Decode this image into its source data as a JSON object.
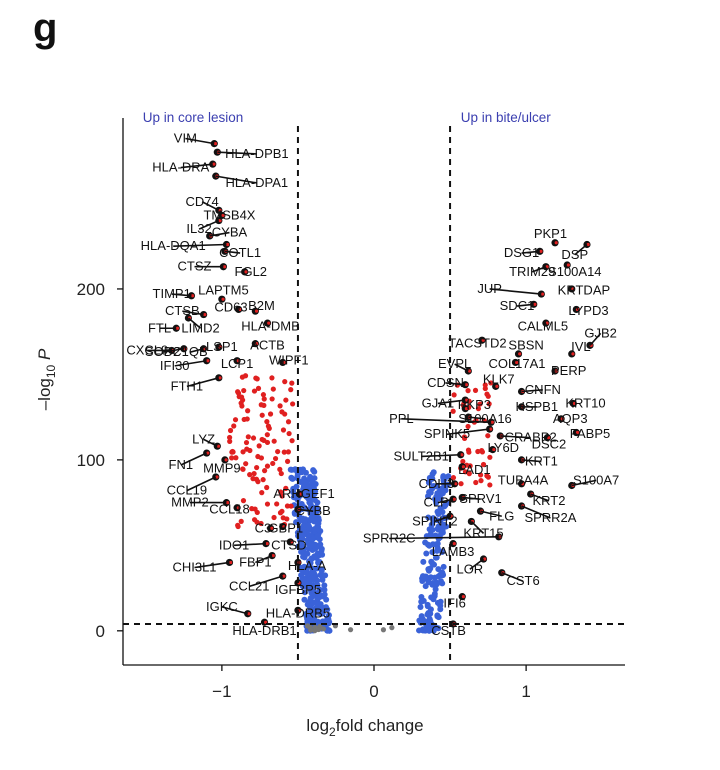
{
  "panel_label": "g",
  "chart_data": {
    "type": "scatter",
    "title": "",
    "xlabel_main": "log",
    "xlabel_sub": "2",
    "xlabel_rest": "fold change",
    "ylabel_pre": "–log",
    "ylabel_sub": "10",
    "ylabel_post": " P",
    "xlim": [
      -1.65,
      1.65
    ],
    "ylim": [
      -20,
      300
    ],
    "x_ticks": [
      -1,
      0,
      1
    ],
    "x_tick_labels": [
      "−1",
      "0",
      "1"
    ],
    "y_ticks": [
      0,
      100,
      200
    ],
    "y_tick_labels": [
      "0",
      "100",
      "200"
    ],
    "fc_threshold": 0.5,
    "p_threshold": 4,
    "region_labels": {
      "left": "Up in core lesion",
      "right": "Up in bite/ulcer"
    },
    "colors": {
      "significant": "#e02020",
      "fc_only": "#3a62d8",
      "ns": "#777777",
      "label_point": "#111111"
    },
    "labeled_genes": [
      {
        "gene": "VIM",
        "x": -1.05,
        "y": 285,
        "lx": -1.24,
        "ly": 288
      },
      {
        "gene": "HLA-DPB1",
        "x": -1.03,
        "y": 280,
        "lx": -0.77,
        "ly": 279
      },
      {
        "gene": "HLA-DRA",
        "x": -1.06,
        "y": 273,
        "lx": -1.27,
        "ly": 271
      },
      {
        "gene": "HLA-DPA1",
        "x": -1.04,
        "y": 266,
        "lx": -0.77,
        "ly": 262
      },
      {
        "gene": "CD74",
        "x": -1.02,
        "y": 246,
        "lx": -1.13,
        "ly": 251
      },
      {
        "gene": "TMSB4X",
        "x": -1.0,
        "y": 243,
        "lx": -0.95,
        "ly": 243
      },
      {
        "gene": "IL32",
        "x": -1.02,
        "y": 240,
        "lx": -1.15,
        "ly": 235
      },
      {
        "gene": "CYBA",
        "x": -1.08,
        "y": 231,
        "lx": -0.95,
        "ly": 233
      },
      {
        "gene": "HLA-DQA1",
        "x": -0.97,
        "y": 226,
        "lx": -1.32,
        "ly": 225
      },
      {
        "gene": "COTL1",
        "x": -0.98,
        "y": 222,
        "lx": -0.88,
        "ly": 221
      },
      {
        "gene": "CTSZ",
        "x": -0.99,
        "y": 213,
        "lx": -1.18,
        "ly": 213
      },
      {
        "gene": "FGL2",
        "x": -0.85,
        "y": 210,
        "lx": -0.81,
        "ly": 210
      },
      {
        "gene": "TIMP1",
        "x": -1.2,
        "y": 196,
        "lx": -1.33,
        "ly": 197
      },
      {
        "gene": "LAPTM5",
        "x": -1.0,
        "y": 194,
        "lx": -0.99,
        "ly": 199
      },
      {
        "gene": "CTSB",
        "x": -1.12,
        "y": 185,
        "lx": -1.26,
        "ly": 187
      },
      {
        "gene": "CD63",
        "x": -0.89,
        "y": 188,
        "lx": -0.94,
        "ly": 189
      },
      {
        "gene": "B2M",
        "x": -0.78,
        "y": 187,
        "lx": -0.74,
        "ly": 190
      },
      {
        "gene": "FTL",
        "x": -1.3,
        "y": 177,
        "lx": -1.41,
        "ly": 177
      },
      {
        "gene": "LIMD2",
        "x": -1.22,
        "y": 183,
        "lx": -1.14,
        "ly": 177
      },
      {
        "gene": "HLA-DMB",
        "x": -0.7,
        "y": 180,
        "lx": -0.68,
        "ly": 178
      },
      {
        "gene": "CXCL9",
        "x": -1.33,
        "y": 164,
        "lx": -1.49,
        "ly": 164
      },
      {
        "gene": "SOD2",
        "x": -1.25,
        "y": 165,
        "lx": -1.39,
        "ly": 163
      },
      {
        "gene": "C1QB",
        "x": -1.12,
        "y": 165,
        "lx": -1.21,
        "ly": 163
      },
      {
        "gene": "LSP1",
        "x": -1.02,
        "y": 166,
        "lx": -1.0,
        "ly": 166
      },
      {
        "gene": "ACTB",
        "x": -0.78,
        "y": 168,
        "lx": -0.7,
        "ly": 167
      },
      {
        "gene": "IFI30",
        "x": -1.1,
        "y": 158,
        "lx": -1.31,
        "ly": 155
      },
      {
        "gene": "LCP1",
        "x": -0.9,
        "y": 158,
        "lx": -0.9,
        "ly": 156
      },
      {
        "gene": "WIPF1",
        "x": -0.6,
        "y": 157,
        "lx": -0.56,
        "ly": 158
      },
      {
        "gene": "FTH1",
        "x": -1.02,
        "y": 148,
        "lx": -1.23,
        "ly": 143
      },
      {
        "gene": "LYZ",
        "x": -1.03,
        "y": 108,
        "lx": -1.12,
        "ly": 112
      },
      {
        "gene": "FN1",
        "x": -1.1,
        "y": 104,
        "lx": -1.27,
        "ly": 97
      },
      {
        "gene": "MMP9",
        "x": -0.98,
        "y": 100,
        "lx": -1.0,
        "ly": 95
      },
      {
        "gene": "CCL19",
        "x": -1.04,
        "y": 90,
        "lx": -1.23,
        "ly": 82
      },
      {
        "gene": "ARHGEF1",
        "x": -0.49,
        "y": 80,
        "lx": -0.46,
        "ly": 80
      },
      {
        "gene": "MMP2",
        "x": -0.97,
        "y": 75,
        "lx": -1.21,
        "ly": 75
      },
      {
        "gene": "CCL18",
        "x": -0.9,
        "y": 72,
        "lx": -0.95,
        "ly": 71
      },
      {
        "gene": "CYBB",
        "x": -0.5,
        "y": 71,
        "lx": -0.4,
        "ly": 70
      },
      {
        "gene": "C3",
        "x": -0.68,
        "y": 60,
        "lx": -0.73,
        "ly": 60
      },
      {
        "gene": "GBP1",
        "x": -0.6,
        "y": 61,
        "lx": -0.58,
        "ly": 60
      },
      {
        "gene": "IDO1",
        "x": -0.71,
        "y": 51,
        "lx": -0.92,
        "ly": 50
      },
      {
        "gene": "CTSD",
        "x": -0.55,
        "y": 52,
        "lx": -0.56,
        "ly": 50
      },
      {
        "gene": "FBP1",
        "x": -0.67,
        "y": 44,
        "lx": -0.78,
        "ly": 40
      },
      {
        "gene": "CHI3L1",
        "x": -0.95,
        "y": 40,
        "lx": -1.18,
        "ly": 37
      },
      {
        "gene": "HLA-A",
        "x": -0.5,
        "y": 40,
        "lx": -0.44,
        "ly": 38
      },
      {
        "gene": "CCL21",
        "x": -0.6,
        "y": 32,
        "lx": -0.82,
        "ly": 26
      },
      {
        "gene": "IGFBP5",
        "x": -0.5,
        "y": 28,
        "lx": -0.5,
        "ly": 24
      },
      {
        "gene": "IGKC",
        "x": -0.83,
        "y": 10,
        "lx": -1.0,
        "ly": 14
      },
      {
        "gene": "HLA-DRB5",
        "x": -0.5,
        "y": 12,
        "lx": -0.5,
        "ly": 10
      },
      {
        "gene": "HLA-DRB1",
        "x": -0.72,
        "y": 5,
        "lx": -0.72,
        "ly": 0
      },
      {
        "gene": "PKP1",
        "x": 1.19,
        "y": 227,
        "lx": 1.16,
        "ly": 232
      },
      {
        "gene": "DSG1",
        "x": 1.09,
        "y": 222,
        "lx": 0.97,
        "ly": 221
      },
      {
        "gene": "DSP",
        "x": 1.4,
        "y": 226,
        "lx": 1.32,
        "ly": 220
      },
      {
        "gene": "TRIM29",
        "x": 1.13,
        "y": 213,
        "lx": 1.04,
        "ly": 210
      },
      {
        "gene": "S100A14",
        "x": 1.27,
        "y": 214,
        "lx": 1.32,
        "ly": 210
      },
      {
        "gene": "JUP",
        "x": 1.1,
        "y": 197,
        "lx": 0.76,
        "ly": 200
      },
      {
        "gene": "KRTDAP",
        "x": 1.3,
        "y": 200,
        "lx": 1.38,
        "ly": 199
      },
      {
        "gene": "SDC1",
        "x": 1.05,
        "y": 191,
        "lx": 0.94,
        "ly": 190
      },
      {
        "gene": "LYPD3",
        "x": 1.33,
        "y": 188,
        "lx": 1.41,
        "ly": 187
      },
      {
        "gene": "CALML5",
        "x": 1.13,
        "y": 180,
        "lx": 1.11,
        "ly": 178
      },
      {
        "gene": "GJB2",
        "x": 1.42,
        "y": 167,
        "lx": 1.49,
        "ly": 174
      },
      {
        "gene": "TACSTD2",
        "x": 0.71,
        "y": 170,
        "lx": 0.68,
        "ly": 168
      },
      {
        "gene": "SBSN",
        "x": 0.95,
        "y": 162,
        "lx": 1.0,
        "ly": 167
      },
      {
        "gene": "IVL",
        "x": 1.3,
        "y": 162,
        "lx": 1.36,
        "ly": 166
      },
      {
        "gene": "EVPL",
        "x": 0.62,
        "y": 152,
        "lx": 0.53,
        "ly": 156
      },
      {
        "gene": "COL17A1",
        "x": 0.93,
        "y": 157,
        "lx": 0.94,
        "ly": 156
      },
      {
        "gene": "PERP",
        "x": 1.19,
        "y": 152,
        "lx": 1.28,
        "ly": 152
      },
      {
        "gene": "CDSN",
        "x": 0.6,
        "y": 144,
        "lx": 0.47,
        "ly": 145
      },
      {
        "gene": "KLK7",
        "x": 0.8,
        "y": 143,
        "lx": 0.82,
        "ly": 147
      },
      {
        "gene": "CNFN",
        "x": 0.97,
        "y": 140,
        "lx": 1.11,
        "ly": 141
      },
      {
        "gene": "GJA1",
        "x": 0.6,
        "y": 135,
        "lx": 0.42,
        "ly": 133
      },
      {
        "gene": "PKP3",
        "x": 0.6,
        "y": 130,
        "lx": 0.66,
        "ly": 132
      },
      {
        "gene": "HSPB1",
        "x": 0.97,
        "y": 131,
        "lx": 1.07,
        "ly": 131
      },
      {
        "gene": "KRT10",
        "x": 1.31,
        "y": 133,
        "lx": 1.39,
        "ly": 133
      },
      {
        "gene": "PPL",
        "x": 0.77,
        "y": 122,
        "lx": 0.18,
        "ly": 124
      },
      {
        "gene": "S100A16",
        "x": 0.62,
        "y": 125,
        "lx": 0.73,
        "ly": 124
      },
      {
        "gene": "AQP3",
        "x": 1.23,
        "y": 124,
        "lx": 1.29,
        "ly": 124
      },
      {
        "gene": "SPINK5",
        "x": 0.76,
        "y": 118,
        "lx": 0.48,
        "ly": 115
      },
      {
        "gene": "CRABP2",
        "x": 0.83,
        "y": 114,
        "lx": 1.03,
        "ly": 113
      },
      {
        "gene": "DSC2",
        "x": 1.14,
        "y": 113,
        "lx": 1.15,
        "ly": 109
      },
      {
        "gene": "FABP5",
        "x": 1.33,
        "y": 116,
        "lx": 1.42,
        "ly": 115
      },
      {
        "gene": "LY6D",
        "x": 0.78,
        "y": 106,
        "lx": 0.85,
        "ly": 107
      },
      {
        "gene": "SULT2B1",
        "x": 0.57,
        "y": 103,
        "lx": 0.31,
        "ly": 102
      },
      {
        "gene": "KRT1",
        "x": 0.97,
        "y": 100,
        "lx": 1.1,
        "ly": 99
      },
      {
        "gene": "LAD1",
        "x": 0.58,
        "y": 96,
        "lx": 0.66,
        "ly": 94
      },
      {
        "gene": "TUBA4A",
        "x": 0.97,
        "y": 86,
        "lx": 0.98,
        "ly": 88
      },
      {
        "gene": "S100A7",
        "x": 1.3,
        "y": 85,
        "lx": 1.46,
        "ly": 88
      },
      {
        "gene": "CDH3",
        "x": 0.53,
        "y": 86,
        "lx": 0.41,
        "ly": 86
      },
      {
        "gene": "KRT2",
        "x": 1.03,
        "y": 80,
        "lx": 1.15,
        "ly": 76
      },
      {
        "gene": "CLPI",
        "x": 0.52,
        "y": 77,
        "lx": 0.42,
        "ly": 75
      },
      {
        "gene": "SPRV1",
        "x": 0.58,
        "y": 78,
        "lx": 0.7,
        "ly": 77
      },
      {
        "gene": "SPRR2A",
        "x": 0.97,
        "y": 73,
        "lx": 1.16,
        "ly": 66
      },
      {
        "gene": "FLG",
        "x": 0.7,
        "y": 70,
        "lx": 0.84,
        "ly": 67
      },
      {
        "gene": "SPINT2",
        "x": 0.5,
        "y": 67,
        "lx": 0.4,
        "ly": 64
      },
      {
        "gene": "KRT15",
        "x": 0.64,
        "y": 64,
        "lx": 0.72,
        "ly": 57
      },
      {
        "gene": "SPRR2C",
        "x": 0.82,
        "y": 55,
        "lx": 0.1,
        "ly": 54
      },
      {
        "gene": "LAMB3",
        "x": 0.52,
        "y": 51,
        "lx": 0.52,
        "ly": 46
      },
      {
        "gene": "LOR",
        "x": 0.72,
        "y": 42,
        "lx": 0.63,
        "ly": 36
      },
      {
        "gene": "CST6",
        "x": 0.84,
        "y": 34,
        "lx": 0.98,
        "ly": 29
      },
      {
        "gene": "IFI6",
        "x": 0.58,
        "y": 20,
        "lx": 0.53,
        "ly": 16
      },
      {
        "gene": "CSTB",
        "x": 0.52,
        "y": 4,
        "lx": 0.49,
        "ly": 0
      }
    ]
  }
}
